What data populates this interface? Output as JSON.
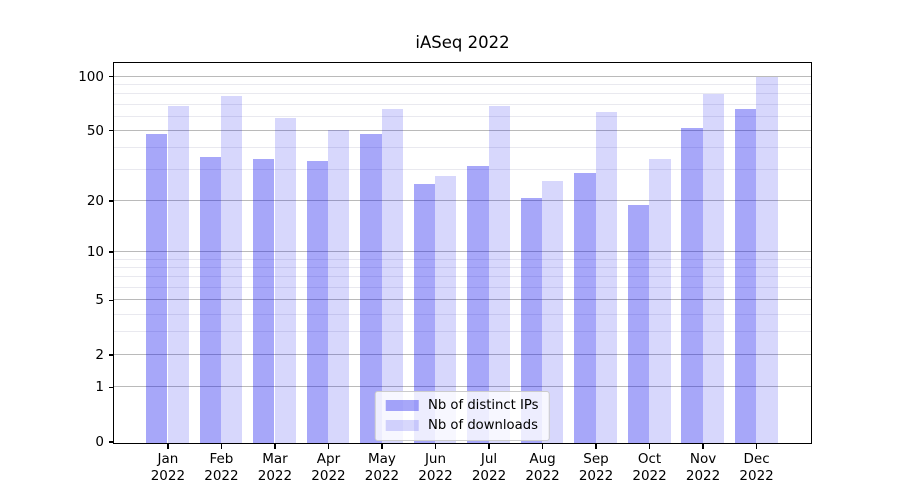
{
  "title": "iASeq 2022",
  "chart_data": {
    "type": "bar",
    "title": "iASeq 2022",
    "categories": [
      "Jan",
      "Feb",
      "Mar",
      "Apr",
      "May",
      "Jun",
      "Jul",
      "Aug",
      "Sep",
      "Oct",
      "Nov",
      "Dec"
    ],
    "year_label": "2022",
    "series": [
      {
        "name": "Nb of distinct IPs",
        "color": "rgba(0,0,238,0.345)",
        "values": [
          48,
          36,
          35,
          34,
          48,
          25,
          32,
          21,
          29,
          19,
          52,
          66
        ]
      },
      {
        "name": "Nb of downloads",
        "color": "rgba(0,0,238,0.155)",
        "values": [
          69,
          78,
          59,
          51,
          66,
          28,
          69,
          26,
          64,
          35,
          80,
          100
        ]
      }
    ],
    "yscale": "log1p",
    "ylim": [
      0,
      119
    ],
    "yticks": [
      0,
      1,
      2,
      5,
      10,
      20,
      50,
      100
    ],
    "minor_gridlines": [
      3,
      4,
      6,
      7,
      8,
      9,
      30,
      40,
      60,
      70,
      80,
      90
    ],
    "grid": true,
    "legend_position": "lower center",
    "colors": {
      "bar_dark": "rgba(0,0,238,0.345)",
      "bar_light": "rgba(0,0,238,0.155)",
      "major_grid": "#bababa",
      "minor_grid": "#e9e9ef",
      "axis": "#000000",
      "background": "#ffffff"
    }
  }
}
